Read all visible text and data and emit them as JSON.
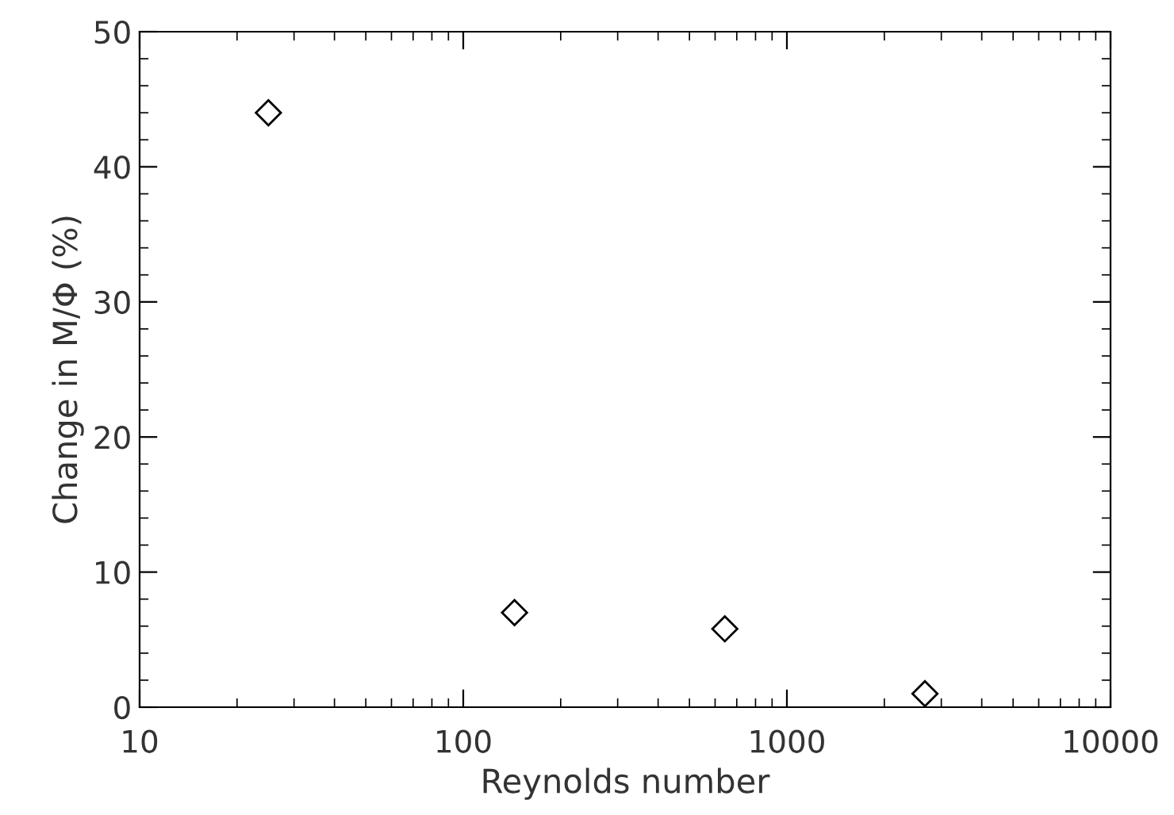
{
  "chart_data": {
    "type": "scatter",
    "xlabel": "Reynolds number",
    "ylabel": "Change in M/Φ (%)",
    "x": [
      25,
      144,
      643,
      2670
    ],
    "values": [
      44.0,
      7.0,
      5.8,
      1.0
    ],
    "color": "#000000",
    "marker": "diamond",
    "log": "x",
    "xlim": [
      10,
      10000
    ],
    "xticks": [
      10,
      100,
      1000,
      10000
    ],
    "ylim": [
      0,
      50
    ],
    "yticks": [
      0,
      10,
      20,
      30,
      40,
      50
    ],
    "grid": false,
    "legend": false
  }
}
